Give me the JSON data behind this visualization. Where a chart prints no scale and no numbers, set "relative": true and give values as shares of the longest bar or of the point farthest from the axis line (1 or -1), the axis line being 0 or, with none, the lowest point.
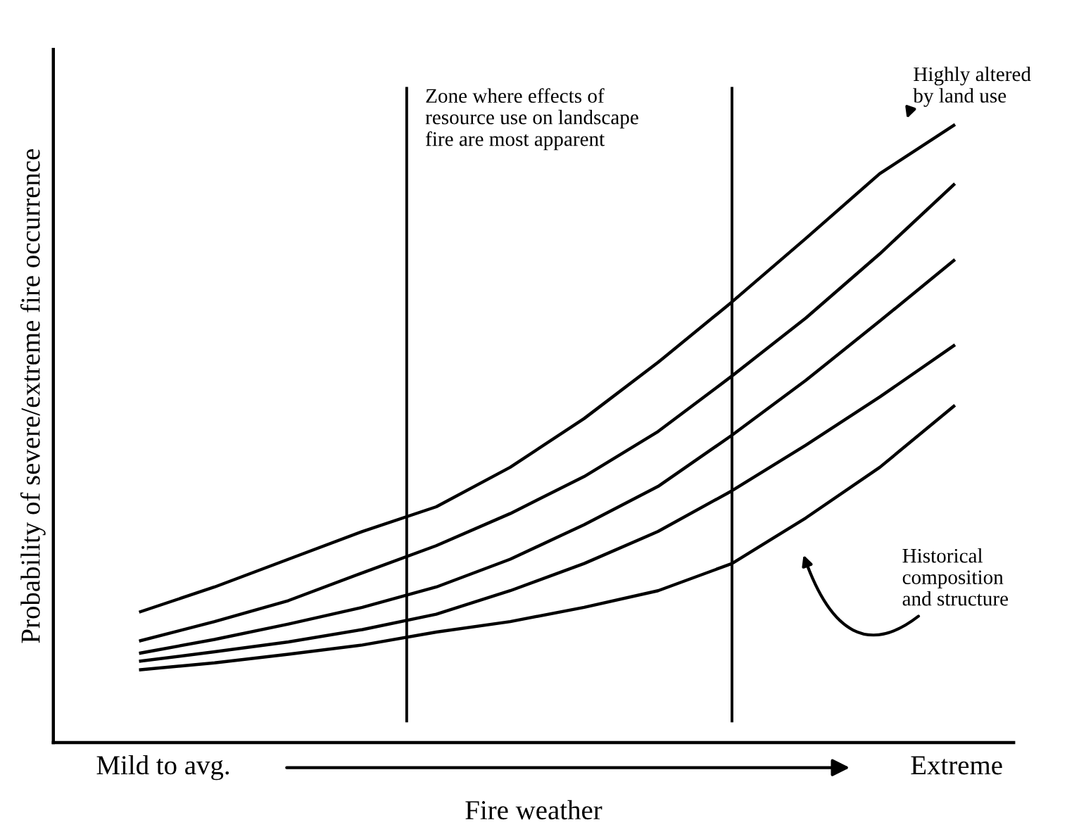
{
  "chart_data": {
    "type": "line",
    "relative": true,
    "xlabel": "Fire weather",
    "ylabel": "Probability of severe/extreme fire occurrence",
    "categories": [
      null,
      null,
      null,
      null,
      null,
      null,
      null,
      null,
      null,
      null,
      null,
      null
    ],
    "series": [
      {
        "color": "#000000",
        "values": [
          0.212,
          0.252,
          0.297,
          0.342,
          0.382,
          0.446,
          0.525,
          0.616,
          0.714,
          0.817,
          0.922,
          1
        ]
      },
      {
        "color": "#000000",
        "values": [
          0.165,
          0.196,
          0.23,
          0.275,
          0.319,
          0.371,
          0.431,
          0.504,
          0.594,
          0.688,
          0.792,
          0.904
        ]
      },
      {
        "color": "#000000",
        "values": [
          0.145,
          0.167,
          0.192,
          0.219,
          0.252,
          0.297,
          0.353,
          0.415,
          0.498,
          0.587,
          0.683,
          0.781
        ]
      },
      {
        "color": "#000000",
        "values": [
          0.132,
          0.147,
          0.163,
          0.183,
          0.208,
          0.246,
          0.29,
          0.342,
          0.408,
          0.482,
          0.56,
          0.643
        ]
      },
      {
        "color": "#000000",
        "values": [
          0.118,
          0.129,
          0.143,
          0.158,
          0.179,
          0.196,
          0.219,
          0.246,
          0.29,
          0.364,
          0.446,
          0.545
        ]
      }
    ],
    "annotations": [
      "Highly altered\nby land use",
      "Historical\ncomposition\nand structure",
      "Mild to avg.",
      "Extreme",
      "Zone where effects of\nresource use on landscape\nfire are most apparent"
    ],
    "grid": false,
    "marker": "none",
    "line_style": "solid"
  }
}
